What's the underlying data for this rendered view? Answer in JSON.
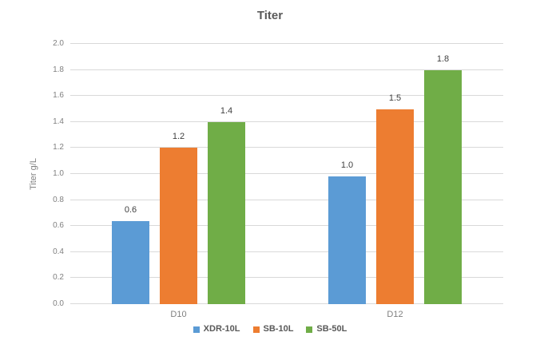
{
  "chart_data": {
    "type": "bar",
    "title": "Titer",
    "xlabel": "",
    "ylabel": "Titer g/L",
    "ylim": [
      0,
      2.0
    ],
    "ytick_step": 0.2,
    "yticks": [
      "0.0",
      "0.2",
      "0.4",
      "0.6",
      "0.8",
      "1.0",
      "1.2",
      "1.4",
      "1.6",
      "1.8",
      "2.0"
    ],
    "categories": [
      "D10",
      "D12"
    ],
    "series": [
      {
        "name": "XDR-10L",
        "color": "#5B9BD5",
        "values": [
          0.64,
          0.98
        ],
        "data_labels": [
          "0.6",
          "1.0"
        ]
      },
      {
        "name": "SB-10L",
        "color": "#ED7D31",
        "values": [
          1.2,
          1.5
        ],
        "data_labels": [
          "1.2",
          "1.5"
        ]
      },
      {
        "name": "SB-50L",
        "color": "#70AD47",
        "values": [
          1.4,
          1.8
        ],
        "data_labels": [
          "1.4",
          "1.8"
        ]
      }
    ],
    "grid": true,
    "gridline_color": "#D9D9D9",
    "legend_position": "bottom"
  }
}
